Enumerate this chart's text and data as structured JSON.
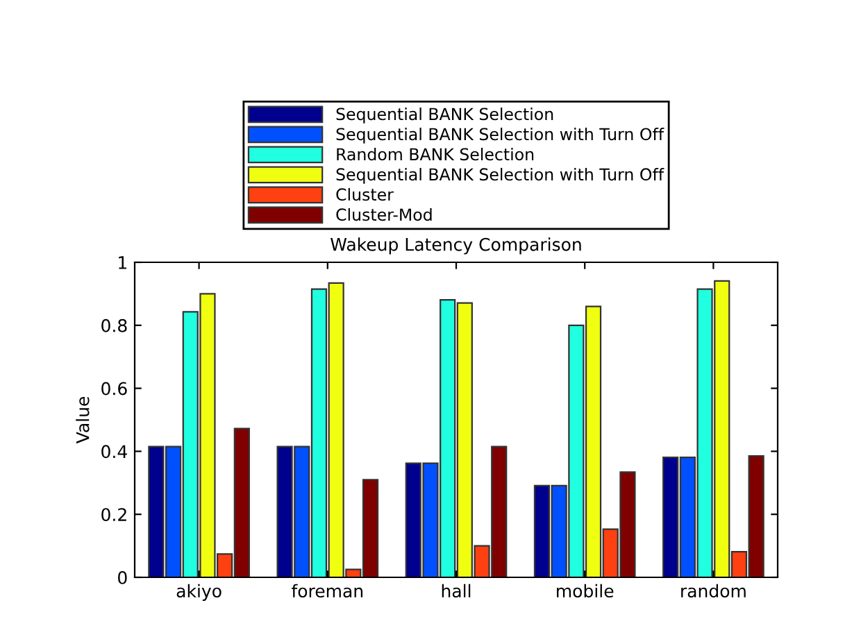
{
  "chart_data": {
    "type": "bar",
    "title": "Wakeup Latency Comparison",
    "ylabel": "Value",
    "categories": [
      "akiyo",
      "foreman",
      "hall",
      "mobile",
      "random"
    ],
    "series": [
      {
        "name": "Sequential BANK Selection",
        "color": "#00008f",
        "values": [
          0.415,
          0.415,
          0.362,
          0.291,
          0.381
        ]
      },
      {
        "name": "Sequential BANK Selection with Turn Off",
        "color": "#0050ff",
        "values": [
          0.415,
          0.415,
          0.362,
          0.291,
          0.381
        ]
      },
      {
        "name": "Random BANK Selection",
        "color": "#20ffdf",
        "values": [
          0.843,
          0.915,
          0.881,
          0.8,
          0.915
        ]
      },
      {
        "name": "Sequential BANK Selection with Turn Off",
        "color": "#f0ff10",
        "values": [
          0.9,
          0.934,
          0.871,
          0.86,
          0.941
        ]
      },
      {
        "name": "Cluster",
        "color": "#ff4010",
        "values": [
          0.074,
          0.025,
          0.1,
          0.153,
          0.081
        ]
      },
      {
        "name": "Cluster-Mod",
        "color": "#800000",
        "values": [
          0.472,
          0.31,
          0.415,
          0.334,
          0.385
        ]
      }
    ],
    "ylim": [
      0,
      1
    ],
    "yticks": [
      0,
      0.2,
      0.4,
      0.6,
      0.8,
      1
    ],
    "grid": false,
    "legend": "top"
  }
}
